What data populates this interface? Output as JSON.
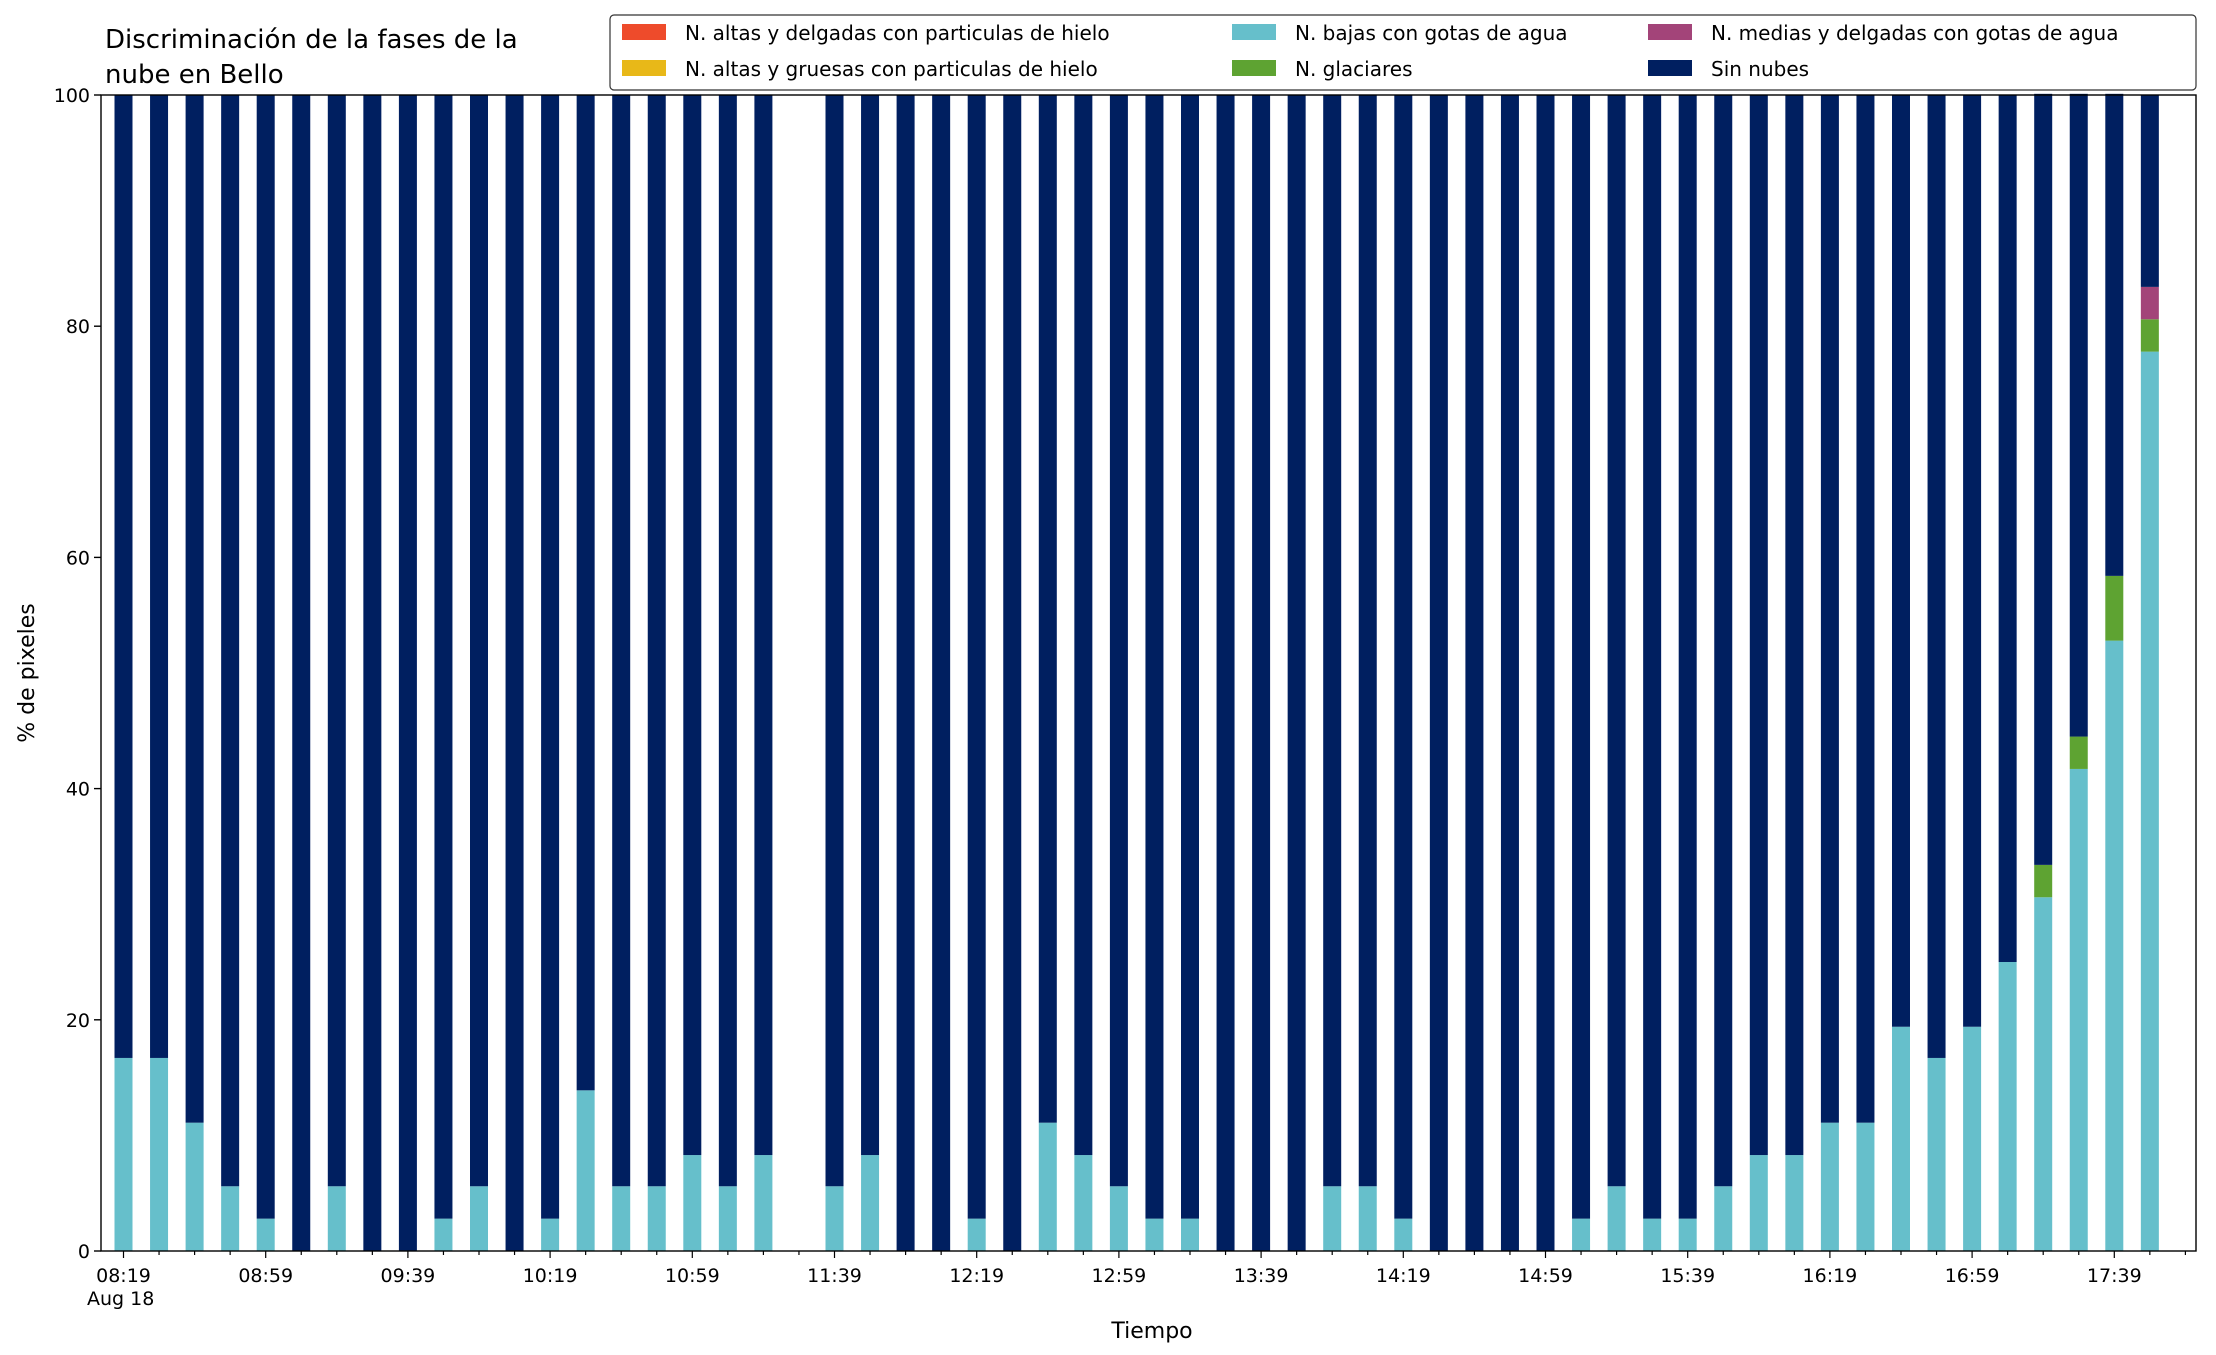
{
  "chart_data": {
    "type": "bar",
    "stacked": true,
    "title": "Discriminación de la fases de la\nnube en Bello",
    "xlabel": "Tiempo",
    "ylabel": "% de pixeles",
    "ylim": [
      0,
      100
    ],
    "yticks": [
      0,
      20,
      40,
      60,
      80,
      100
    ],
    "grid": false,
    "legend_position": "top-right",
    "date_label": "Aug 18",
    "categories": [
      "08:19",
      "08:29",
      "08:39",
      "08:49",
      "08:59",
      "09:09",
      "09:19",
      "09:29",
      "09:39",
      "09:49",
      "09:59",
      "10:09",
      "10:19",
      "10:29",
      "10:39",
      "10:49",
      "10:59",
      "11:09",
      "11:19",
      "11:29",
      "11:39",
      "11:49",
      "11:59",
      "12:09",
      "12:19",
      "12:29",
      "12:39",
      "12:49",
      "12:59",
      "13:09",
      "13:19",
      "13:29",
      "13:39",
      "13:49",
      "13:59",
      "14:09",
      "14:19",
      "14:29",
      "14:39",
      "14:49",
      "14:59",
      "15:09",
      "15:19",
      "15:29",
      "15:39",
      "15:49",
      "15:59",
      "16:09",
      "16:19",
      "16:29",
      "16:39",
      "16:49",
      "16:59",
      "17:09",
      "17:19",
      "17:29",
      "17:39",
      "17:49"
    ],
    "xtick_labels": [
      "08:19",
      "08:59",
      "09:39",
      "10:19",
      "10:59",
      "11:39",
      "12:19",
      "12:59",
      "13:39",
      "14:19",
      "14:59",
      "15:39",
      "16:19",
      "16:59",
      "17:39"
    ],
    "series": [
      {
        "name": "N. altas y delgadas con particulas de hielo",
        "color": "#ee4b2b",
        "values": [
          0,
          0,
          0,
          0,
          0,
          0,
          0,
          0,
          0,
          0,
          0,
          0,
          0,
          0,
          0,
          0,
          0,
          0,
          0,
          null,
          0,
          0,
          0,
          0,
          0,
          0,
          0,
          0,
          0,
          0,
          0,
          0,
          0,
          0,
          0,
          0,
          0,
          0,
          0,
          0,
          0,
          0,
          0,
          0,
          0,
          0,
          0,
          0,
          0,
          0,
          0,
          0,
          0,
          0,
          0,
          0,
          0,
          0
        ]
      },
      {
        "name": "N. altas y gruesas con particulas de hielo",
        "color": "#e8b818",
        "values": [
          0,
          0,
          0,
          0,
          0,
          0,
          0,
          0,
          0,
          0,
          0,
          0,
          0,
          0,
          0,
          0,
          0,
          0,
          0,
          null,
          0,
          0,
          0,
          0,
          0,
          0,
          0,
          0,
          0,
          0,
          0,
          0,
          0,
          0,
          0,
          0,
          0,
          0,
          0,
          0,
          0,
          0,
          0,
          0,
          0,
          0,
          0,
          0,
          0,
          0,
          0,
          0,
          0,
          0,
          0,
          0,
          0,
          0
        ]
      },
      {
        "name": "N. bajas con gotas de agua",
        "color": "#66bfcb",
        "values": [
          16.7,
          16.7,
          11.1,
          5.6,
          2.8,
          0,
          5.6,
          0,
          0,
          2.8,
          5.6,
          0,
          2.8,
          13.9,
          5.6,
          5.6,
          8.3,
          5.6,
          8.3,
          null,
          5.6,
          8.3,
          0,
          0,
          2.8,
          0,
          11.1,
          8.3,
          5.6,
          2.8,
          2.8,
          0,
          0,
          0,
          5.6,
          5.6,
          2.8,
          0,
          0,
          0,
          0,
          2.8,
          5.6,
          2.8,
          2.8,
          5.6,
          8.3,
          8.3,
          11.1,
          11.1,
          19.4,
          16.7,
          19.4,
          25.0,
          30.6,
          41.7,
          52.8,
          77.8
        ]
      },
      {
        "name": "N. glaciares",
        "color": "#5ea332",
        "values": [
          0,
          0,
          0,
          0,
          0,
          0,
          0,
          0,
          0,
          0,
          0,
          0,
          0,
          0,
          0,
          0,
          0,
          0,
          0,
          null,
          0,
          0,
          0,
          0,
          0,
          0,
          0,
          0,
          0,
          0,
          0,
          0,
          0,
          0,
          0,
          0,
          0,
          0,
          0,
          0,
          0,
          0,
          0,
          0,
          0,
          0,
          0,
          0,
          0,
          0,
          0,
          0,
          0,
          0,
          2.8,
          2.8,
          5.6,
          2.8
        ]
      },
      {
        "name": "N. medias y delgadas con gotas de agua",
        "color": "#a34479",
        "values": [
          0,
          0,
          0,
          0,
          0,
          0,
          0,
          0,
          0,
          0,
          0,
          0,
          0,
          0,
          0,
          0,
          0,
          0,
          0,
          null,
          0,
          0,
          0,
          0,
          0,
          0,
          0,
          0,
          0,
          0,
          0,
          0,
          0,
          0,
          0,
          0,
          0,
          0,
          0,
          0,
          0,
          0,
          0,
          0,
          0,
          0,
          0,
          0,
          0,
          0,
          0,
          0,
          0,
          0,
          0,
          0,
          0,
          2.8
        ]
      },
      {
        "name": "Sin nubes",
        "color": "#001f60",
        "values": [
          83.3,
          83.3,
          88.9,
          94.4,
          97.2,
          100,
          94.4,
          100,
          100,
          97.2,
          94.4,
          100,
          97.2,
          86.1,
          94.4,
          94.4,
          91.7,
          94.4,
          91.7,
          null,
          94.4,
          91.7,
          100,
          100,
          97.2,
          100,
          88.9,
          91.7,
          94.4,
          97.2,
          97.2,
          100,
          100,
          100,
          94.4,
          94.4,
          97.2,
          100,
          100,
          100,
          100,
          97.2,
          94.4,
          97.2,
          97.2,
          94.4,
          91.7,
          91.7,
          88.9,
          88.9,
          80.6,
          83.3,
          80.6,
          75.0,
          66.7,
          55.6,
          41.7,
          16.6
        ]
      }
    ],
    "legend_order": [
      0,
      1,
      2,
      3,
      4,
      5
    ]
  }
}
